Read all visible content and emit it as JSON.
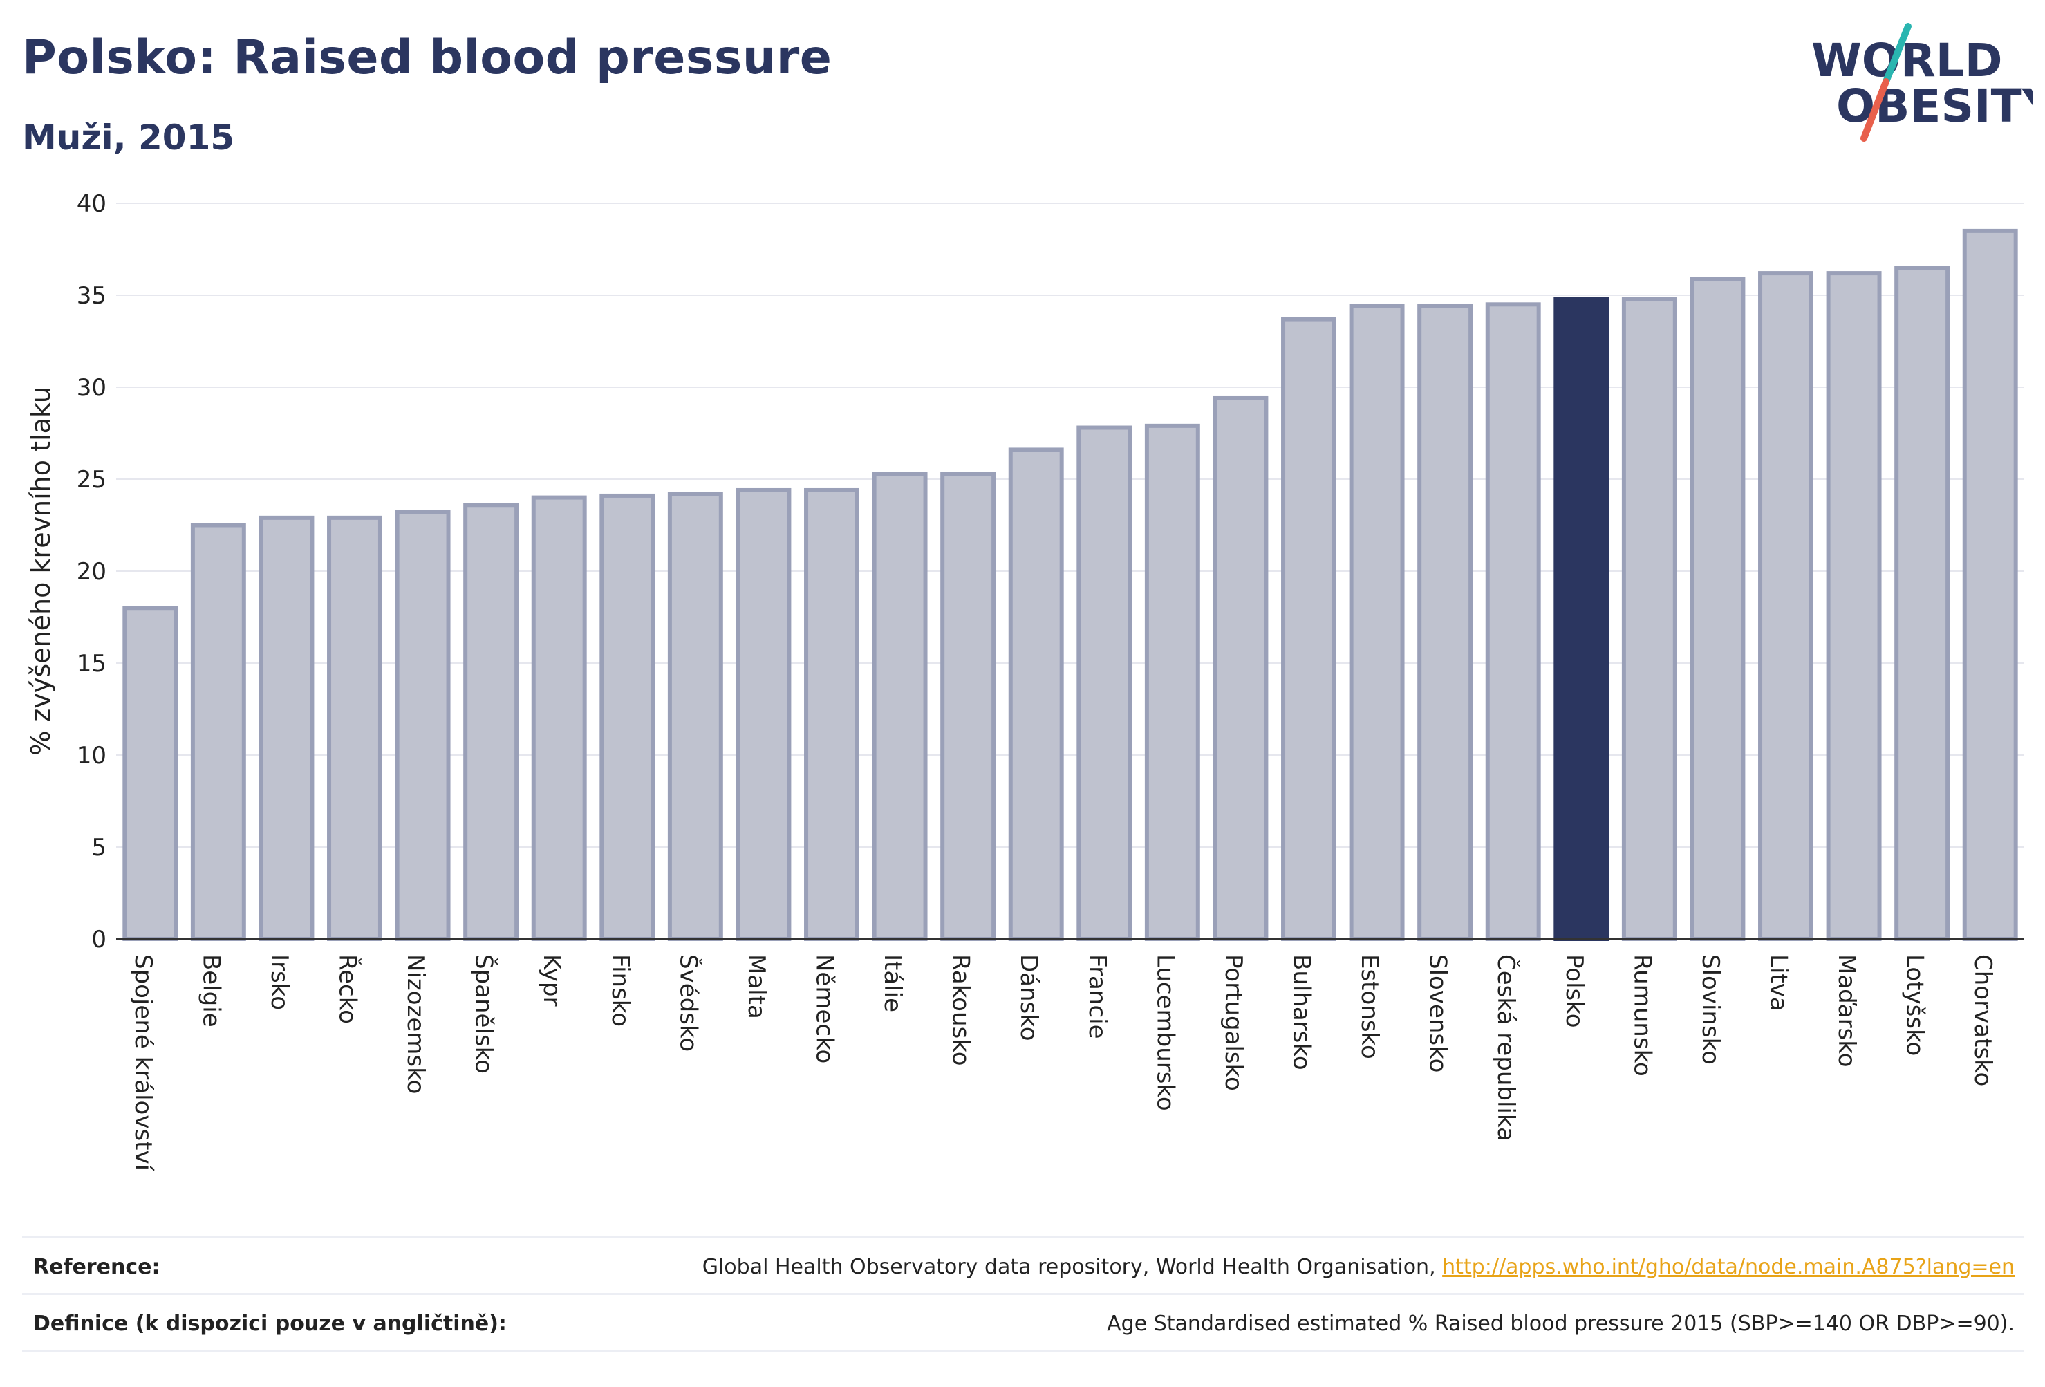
{
  "header": {
    "title": "Polsko: Raised blood pressure",
    "subtitle": "Muži, 2015"
  },
  "logo": {
    "line1": "WORLD",
    "line2": "OBESITY",
    "colors": {
      "text": "#2b3660",
      "slash_top": "#2ab5b0",
      "slash_bottom": "#e8604c"
    }
  },
  "colors": {
    "bar_fill": "#bfc2cf",
    "bar_stroke": "#9aa0b8",
    "highlight": "#2b3660",
    "grid": "#e6e7ee",
    "axis": "#333333"
  },
  "chart_data": {
    "type": "bar",
    "title": "Polsko: Raised blood pressure",
    "subtitle": "Muži, 2015",
    "xlabel": "",
    "ylabel": "% zvýšeného krevního tlaku",
    "ylim": [
      0,
      40
    ],
    "yticks": [
      0,
      5,
      10,
      15,
      20,
      25,
      30,
      35,
      40
    ],
    "grid": true,
    "highlight_category": "Polsko",
    "categories": [
      "Spojené království",
      "Belgie",
      "Irsko",
      "Řecko",
      "Nizozemsko",
      "Španělsko",
      "Kypr",
      "Finsko",
      "Švédsko",
      "Malta",
      "Německo",
      "Itálie",
      "Rakousko",
      "Dánsko",
      "Francie",
      "Lucembursko",
      "Portugalsko",
      "Bulharsko",
      "Estonsko",
      "Slovensko",
      "Česká republika",
      "Polsko",
      "Rumunsko",
      "Slovinsko",
      "Litva",
      "Maďarsko",
      "Lotyšsko",
      "Chorvatsko"
    ],
    "values": [
      18.0,
      22.5,
      22.9,
      22.9,
      23.2,
      23.6,
      24.0,
      24.1,
      24.2,
      24.4,
      24.4,
      25.3,
      25.3,
      26.6,
      27.8,
      27.9,
      29.4,
      33.7,
      34.4,
      34.4,
      34.5,
      34.8,
      34.8,
      35.9,
      36.2,
      36.2,
      36.5,
      38.5
    ]
  },
  "footer": {
    "reference_label": "Reference:",
    "reference_text": "Global Health Observatory data repository, World Health Organisation, ",
    "reference_link": "http://apps.who.int/gho/data/node.main.A875?lang=en",
    "definition_label": "Definice (k dispozici pouze v angličtině):",
    "definition_text": "Age Standardised estimated % Raised blood pressure 2015 (SBP>=140 OR DBP>=90)."
  }
}
